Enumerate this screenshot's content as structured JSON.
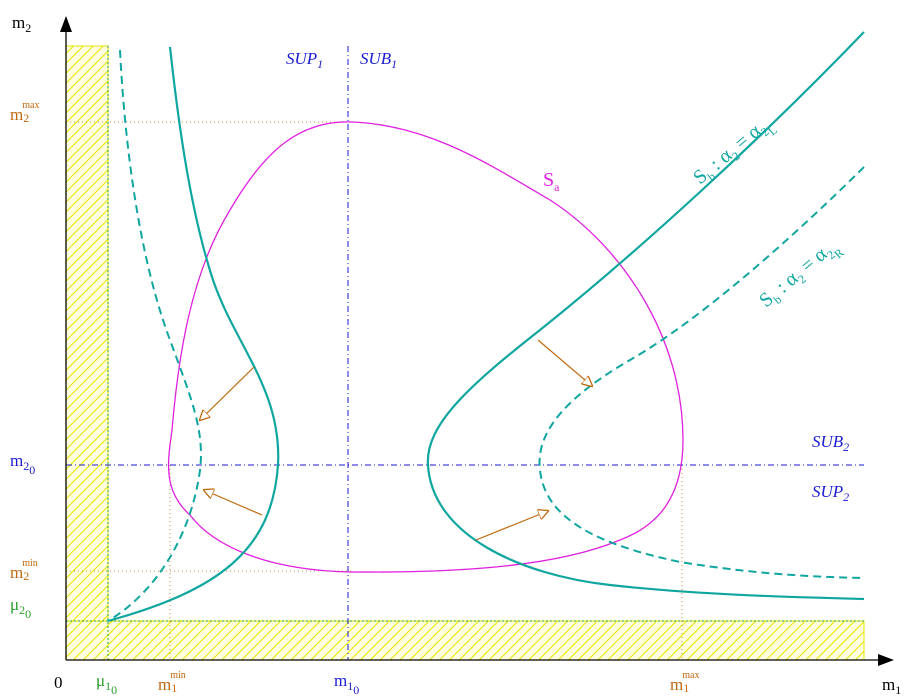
{
  "axes": {
    "origin": "0",
    "x_var": "m",
    "x_var_sub": "1",
    "y_var": "m",
    "y_var_sub": "2"
  },
  "x_ticks": {
    "mu10": {
      "base": "μ",
      "sub": "1",
      "subsub": "0"
    },
    "m1min": {
      "base": "m",
      "sub": "1",
      "sup": "min"
    },
    "m10": {
      "base": "m",
      "sub": "1",
      "subsub": "0"
    },
    "m1max": {
      "base": "m",
      "sub": "1",
      "sup": "max"
    }
  },
  "y_ticks": {
    "m2max": {
      "base": "m",
      "sub": "2",
      "sup": "max"
    },
    "m20": {
      "base": "m",
      "sub": "2",
      "subsub": "0"
    },
    "m2min": {
      "base": "m",
      "sub": "2",
      "sup": "min"
    },
    "mu20": {
      "base": "μ",
      "sub": "2",
      "subsub": "0"
    }
  },
  "regions": {
    "sup1": {
      "base": "SUP",
      "sub": "1"
    },
    "sub1": {
      "base": "SUB",
      "sub": "1"
    },
    "sub2": {
      "base": "SUB",
      "sub": "2"
    },
    "sup2": {
      "base": "SUP",
      "sub": "2"
    }
  },
  "curves": {
    "sa": {
      "base": "S",
      "sub": "a"
    },
    "sb_L": {
      "base": "S",
      "sub": "b",
      "mid": " : α",
      "mid_sub": "2",
      "eq": " = α",
      "eq_sub": "2",
      "eq_subsub": "L"
    },
    "sb_R": {
      "base": "S",
      "sub": "b",
      "mid": " : α",
      "mid_sub": "2",
      "eq": " = α",
      "eq_sub": "2",
      "eq_subsub": "R"
    }
  },
  "colors": {
    "teal": "#10a6a0",
    "magenta": "#e020e0",
    "blue": "#1a1ad0",
    "orange": "#c06a10",
    "hatch": "#e4e400",
    "green": "#2aa02a"
  }
}
